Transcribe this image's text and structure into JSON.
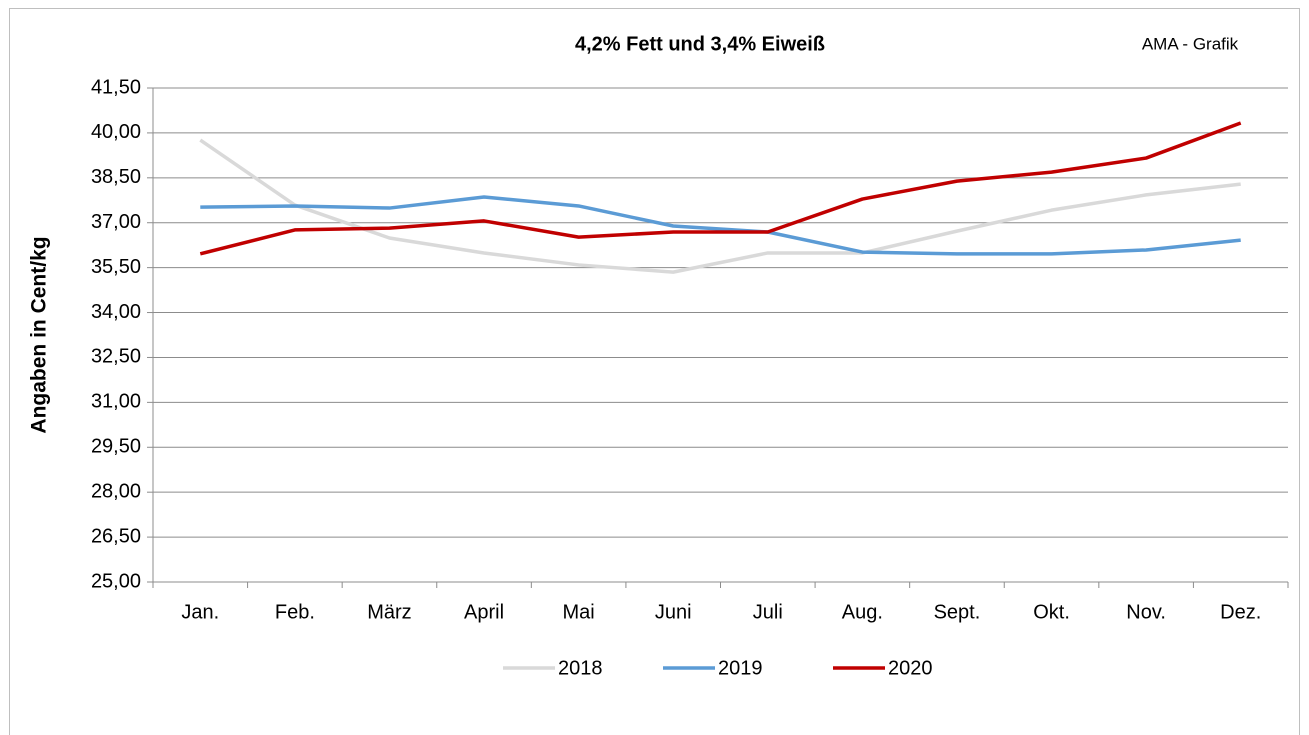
{
  "chart_data": {
    "type": "line",
    "title": "4,2% Fett und 3,4% Eiweiß",
    "annotation": "AMA - Grafik",
    "y_label": "Angaben in Cent/kg",
    "categories": [
      "Jan.",
      "Feb.",
      "März",
      "April",
      "Mai",
      "Juni",
      "Juli",
      "Aug.",
      "Sept.",
      "Okt.",
      "Nov.",
      "Dez."
    ],
    "series": [
      {
        "name": "2018",
        "color": "#d9d9d9",
        "values": [
          39.76,
          37.59,
          36.49,
          35.99,
          35.59,
          35.35,
          35.99,
          35.99,
          36.72,
          37.42,
          37.93,
          38.29
        ]
      },
      {
        "name": "2019",
        "color": "#5b9bd5",
        "values": [
          37.52,
          37.56,
          37.49,
          37.86,
          37.56,
          36.89,
          36.69,
          36.02,
          35.96,
          35.96,
          36.09,
          36.42
        ]
      },
      {
        "name": "2020",
        "color": "#c00000",
        "values": [
          35.96,
          36.76,
          36.82,
          37.06,
          36.52,
          36.69,
          36.69,
          37.79,
          38.39,
          38.69,
          39.16,
          40.33
        ]
      }
    ],
    "ylim": [
      25,
      41.5
    ],
    "yticks": [
      {
        "value": 25,
        "label": "25,00"
      },
      {
        "value": 26.5,
        "label": "26,50"
      },
      {
        "value": 28,
        "label": "28,00"
      },
      {
        "value": 29.5,
        "label": "29,50"
      },
      {
        "value": 31,
        "label": "31,00"
      },
      {
        "value": 32.5,
        "label": "32,50"
      },
      {
        "value": 34,
        "label": "34,00"
      },
      {
        "value": 35.5,
        "label": "35,50"
      },
      {
        "value": 37,
        "label": "37,00"
      },
      {
        "value": 38.5,
        "label": "38,50"
      },
      {
        "value": 40,
        "label": "40,00"
      },
      {
        "value": 41.5,
        "label": "41,50"
      }
    ],
    "grid": true,
    "legend": "bottom"
  }
}
